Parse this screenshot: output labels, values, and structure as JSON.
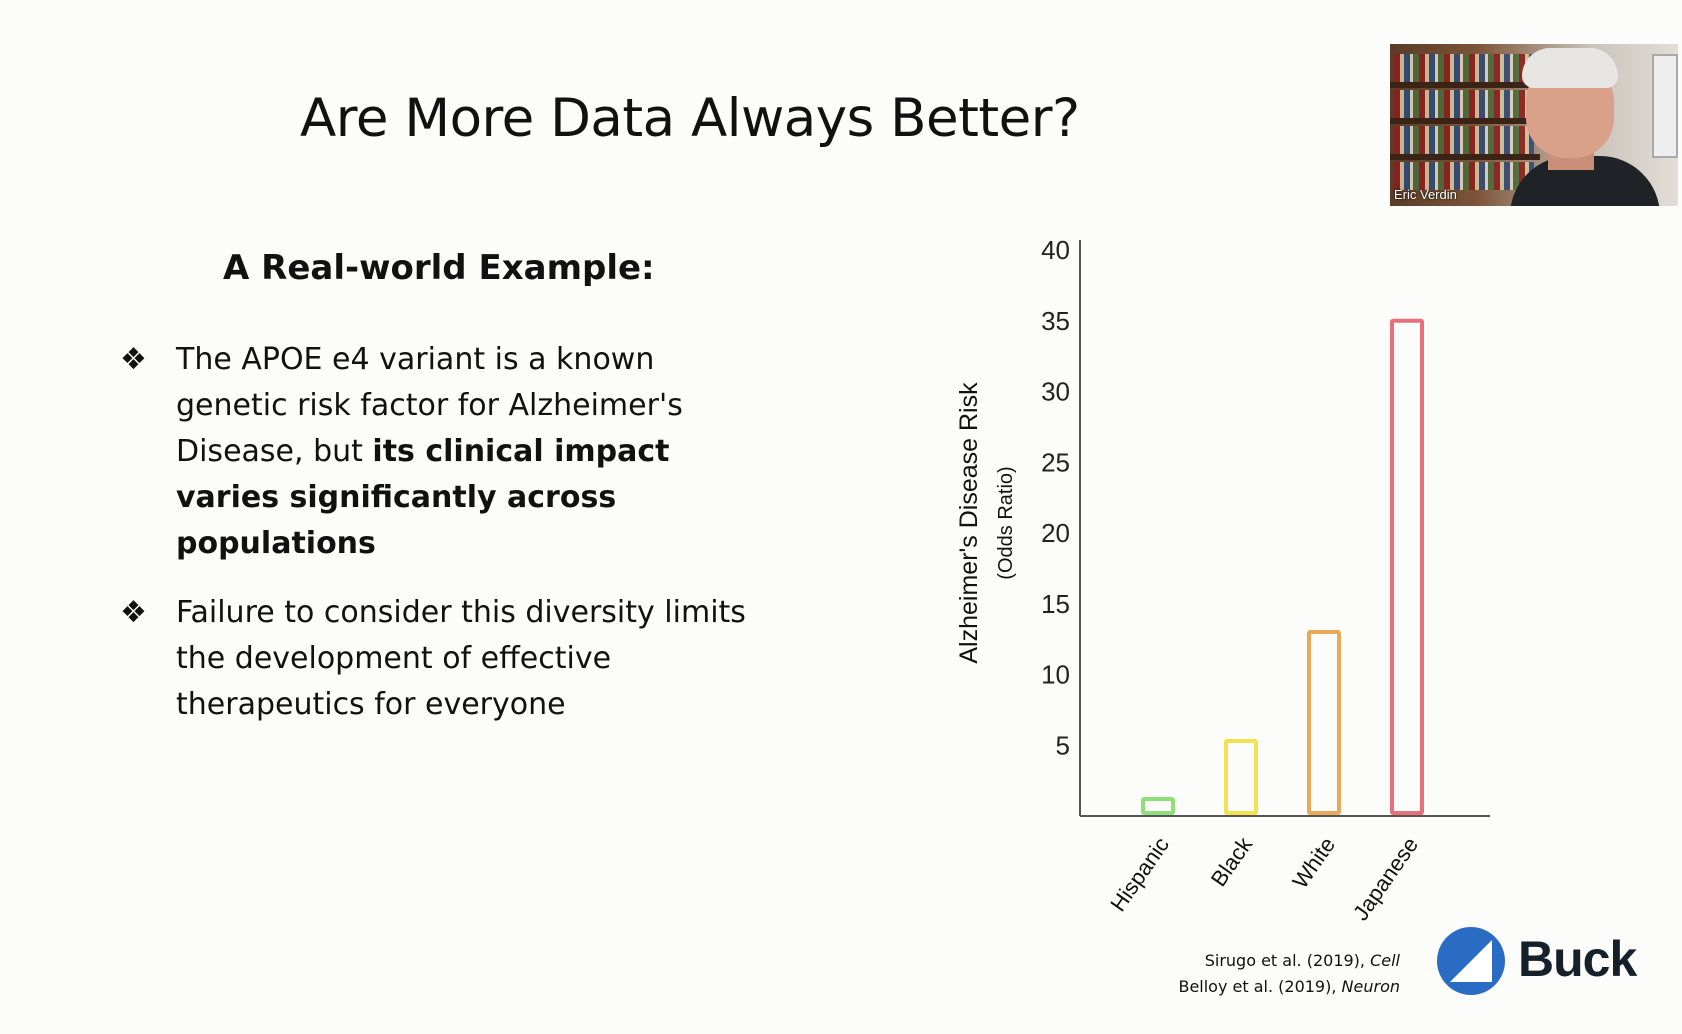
{
  "slide": {
    "title": "Are More Data Always Better?",
    "subtitle": "A Real-world Example:",
    "bullets": [
      {
        "marker": "❖",
        "text_plain": "The APOE e4 variant is a known genetic risk factor for Alzheimer's Disease, but ",
        "text_bold": "its clinical impact varies significantly across populations"
      },
      {
        "marker": "❖",
        "text_plain": "Failure to consider this diversity limits the development of effective therapeutics for everyone",
        "text_bold": ""
      }
    ],
    "citations": [
      {
        "authors": "Sirugo et al. (2019), ",
        "journal": "Cell"
      },
      {
        "authors": "Belloy et al. (2019), ",
        "journal": "Neuron"
      }
    ],
    "logo_text": "Buck",
    "logo_color": "#2a6cc4"
  },
  "webcam": {
    "name": "Eric Verdin"
  },
  "chart_data": {
    "type": "bar",
    "categories": [
      "Hispanic",
      "Black",
      "White",
      "Japanese"
    ],
    "values": [
      1.2,
      5.3,
      13,
      35
    ],
    "colors": [
      "#8fe07a",
      "#f2e24f",
      "#e9a85a",
      "#e8707a"
    ],
    "ylabel": "Alzheimer's Disease Risk",
    "ylabel_sub": "(Odds Ratio)",
    "yticks": [
      5,
      10,
      15,
      20,
      25,
      30,
      35,
      40
    ],
    "ylim": [
      0,
      40
    ],
    "grid": false,
    "legend": "none"
  }
}
